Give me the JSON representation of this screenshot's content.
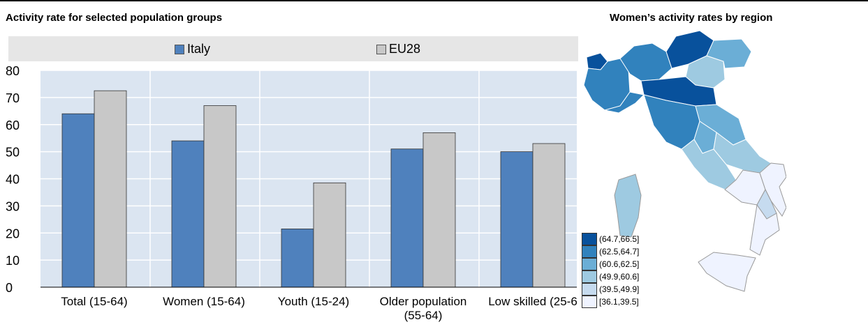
{
  "titles": {
    "left": "Activity rate for selected population groups",
    "right": "Women’s activity rates by region"
  },
  "legend": [
    {
      "label": "Italy",
      "color": "#4f81bd"
    },
    {
      "label": "EU28",
      "color": "#c8c8c8"
    }
  ],
  "chart_data": {
    "type": "bar",
    "title": "Activity rate for selected population groups",
    "categories": [
      "Total (15-64)",
      "Women (15-64)",
      "Youth (15-24)",
      "Older population\n(55-64)",
      "Low skilled (25-6"
    ],
    "series": [
      {
        "name": "Italy",
        "values": [
          64,
          54,
          21.5,
          51,
          50
        ],
        "color": "#4f81bd"
      },
      {
        "name": "EU28",
        "values": [
          72.5,
          67,
          38.5,
          57,
          53
        ],
        "color": "#c8c8c8"
      }
    ],
    "ylim": [
      0,
      80
    ],
    "yticks": [
      0,
      10,
      20,
      30,
      40,
      50,
      60,
      70,
      80
    ],
    "grid": true,
    "legend_position": "top"
  },
  "map": {
    "title": "Women’s activity rates by region",
    "legend": [
      {
        "label": "(64.7,66.5]",
        "color": "#08519c"
      },
      {
        "label": "(62.5,64.7]",
        "color": "#3182bd"
      },
      {
        "label": "(60.6,62.5]",
        "color": "#6baed6"
      },
      {
        "label": "(49.9,60.6]",
        "color": "#9ecae1"
      },
      {
        "label": "(39.5,49.9]",
        "color": "#c6dbef"
      },
      {
        "label": "[36.1,39.5]",
        "color": "#eff3ff"
      }
    ]
  }
}
